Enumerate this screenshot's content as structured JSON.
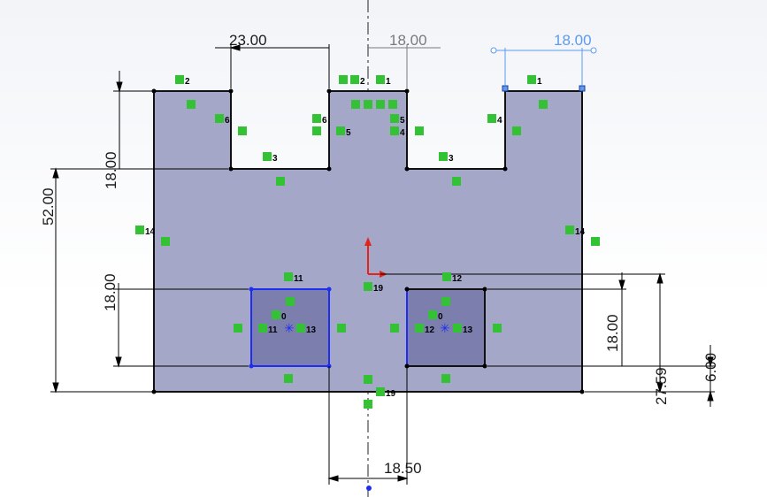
{
  "colors": {
    "part_fill": "#a4a7c8",
    "part_edge": "#111111",
    "slot_fill": "#7c7fae",
    "selected_edge": "#1f2df0",
    "dimension_line": "#000000",
    "selected_dimension": "#5b9bf0",
    "inactive_dimension": "#7a7a7a",
    "relation_badge": "#33c233",
    "origin_x": "#e0251c",
    "origin_y": "#e0251c"
  },
  "dimensions": {
    "notch_left_width": "23.00",
    "notch_center_width": "18.00",
    "notch_right_width": "18.00",
    "notch_depth": "18.00",
    "total_height": "52.00",
    "pocket_left_height": "18.00",
    "pocket_right_height": "18.00",
    "pocket_gap": "18.50",
    "pocket_offset_height": "27.59",
    "pocket_bottom_offset": "6.00"
  },
  "relations": {
    "r2": "2",
    "r1": "1",
    "r6": "6",
    "r5": "5",
    "r4": "4",
    "r3": "3",
    "r14": "14",
    "r11": "11",
    "r12": "12",
    "r13": "13",
    "r19": "19",
    "r0": "0"
  }
}
